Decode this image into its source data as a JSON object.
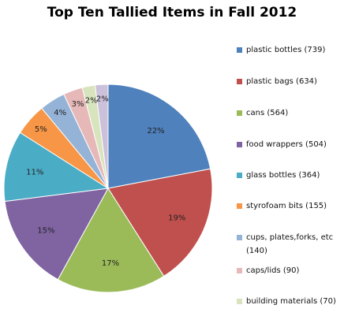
{
  "chart_data": {
    "type": "pie",
    "title": "Top Ten Tallied Items in Fall 2012",
    "categories": [
      "plastic bottles (739)",
      "plastic bags (634)",
      "cans (564)",
      "food wrappers (504)",
      "glass bottles (364)",
      "styrofoam bits (155)",
      "cups, plates,forks, etc (140)",
      "caps/lids (90)",
      "building materials (70)",
      null
    ],
    "values": [
      22,
      19,
      17,
      15,
      11,
      5,
      4,
      3,
      2,
      2
    ],
    "value_labels": [
      "22%",
      "19%",
      "17%",
      "15%",
      "11%",
      "5%",
      "4%",
      "3%",
      "2%",
      "2%"
    ],
    "colors": [
      "#4f81bd",
      "#c0504d",
      "#9bbb59",
      "#8064a2",
      "#4bacc6",
      "#f79646",
      "#95b3d7",
      "#e6b9b8",
      "#d7e4bd",
      "#ccc1da"
    ]
  }
}
